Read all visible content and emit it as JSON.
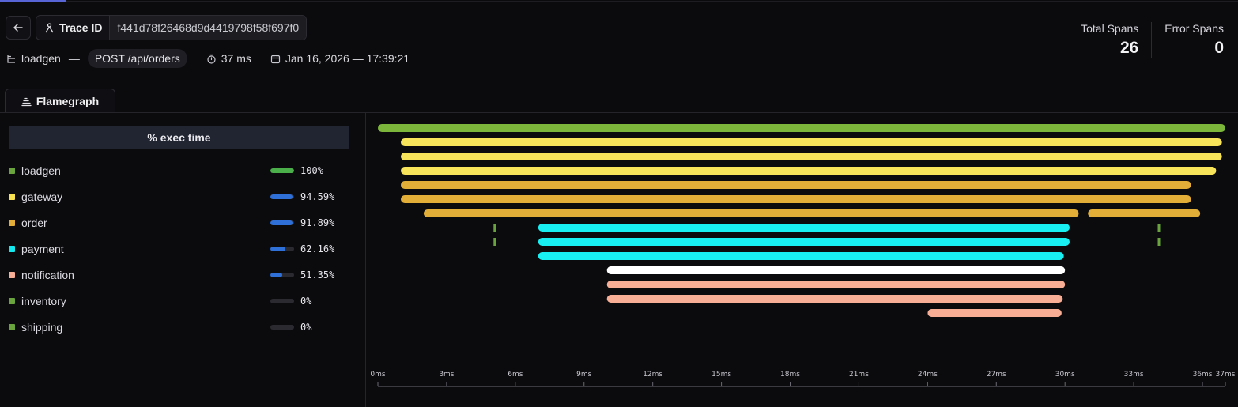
{
  "header": {
    "trace_label": "Trace ID",
    "trace_id": "f441d78f26468d9d4419798f58f697f0",
    "service": "loadgen",
    "separator": "—",
    "endpoint": "POST /api/orders",
    "duration": "37 ms",
    "timestamp": "Jan 16, 2026 — 17:39:21"
  },
  "stats": {
    "total_label": "Total Spans",
    "total_value": "26",
    "error_label": "Error Spans",
    "error_value": "0"
  },
  "tabs": [
    {
      "label": "Flamegraph"
    }
  ],
  "legend": {
    "header": "% exec time",
    "items": [
      {
        "name": "loadgen",
        "color": "#6aa43c",
        "pct": "100%",
        "fraction": 1.0,
        "bar_color": "#4bb04a"
      },
      {
        "name": "gateway",
        "color": "#f7e14f",
        "pct": "94.59%",
        "fraction": 0.9459,
        "bar_color": "#2f6fd8"
      },
      {
        "name": "order",
        "color": "#e3ad3a",
        "pct": "91.89%",
        "fraction": 0.9189,
        "bar_color": "#2f6fd8"
      },
      {
        "name": "payment",
        "color": "#12e8ee",
        "pct": "62.16%",
        "fraction": 0.6216,
        "bar_color": "#2f6fd8"
      },
      {
        "name": "notification",
        "color": "#f7ae94",
        "pct": "51.35%",
        "fraction": 0.5135,
        "bar_color": "#2f6fd8"
      },
      {
        "name": "inventory",
        "color": "#6aa43c",
        "pct": "0%",
        "fraction": 0,
        "bar_color": "#2f6fd8"
      },
      {
        "name": "shipping",
        "color": "#6aa43c",
        "pct": "0%",
        "fraction": 0,
        "bar_color": "#2f6fd8"
      }
    ]
  },
  "flamegraph": {
    "axis_ticks": [
      "0ms",
      "3ms",
      "6ms",
      "9ms",
      "12ms",
      "15ms",
      "18ms",
      "21ms",
      "24ms",
      "27ms",
      "30ms",
      "33ms",
      "36ms",
      "37ms"
    ],
    "axis_max_ms": 37,
    "spans": [
      {
        "service": "loadgen",
        "start": 0.0,
        "end": 37.0,
        "row": 0,
        "color": "#7cb63a"
      },
      {
        "service": "gateway",
        "start": 1.0,
        "end": 36.85,
        "row": 1,
        "color": "#f8e45a"
      },
      {
        "service": "gateway",
        "start": 1.0,
        "end": 36.85,
        "row": 2,
        "color": "#f8e45a"
      },
      {
        "service": "gateway",
        "start": 1.0,
        "end": 36.6,
        "row": 3,
        "color": "#f8e45a"
      },
      {
        "service": "order",
        "start": 1.0,
        "end": 35.5,
        "row": 4,
        "color": "#e2ae38"
      },
      {
        "service": "order",
        "start": 1.0,
        "end": 35.5,
        "row": 5,
        "color": "#e2ae38"
      },
      {
        "service": "order",
        "start": 2.0,
        "end": 30.6,
        "row": 6,
        "color": "#e2ae38"
      },
      {
        "service": "order",
        "start": 31.0,
        "end": 35.9,
        "row": 6,
        "color": "#e2ae38"
      },
      {
        "service": "inventory",
        "start": 5.05,
        "end": 5.12,
        "row": 7,
        "color": "#6aa43c"
      },
      {
        "service": "inventory",
        "start": 5.05,
        "end": 5.12,
        "row": 8,
        "color": "#6aa43c"
      },
      {
        "service": "shipping",
        "start": 34.05,
        "end": 34.12,
        "row": 7,
        "color": "#6aa43c"
      },
      {
        "service": "shipping",
        "start": 34.05,
        "end": 34.12,
        "row": 8,
        "color": "#6aa43c"
      },
      {
        "service": "payment",
        "start": 7.0,
        "end": 30.2,
        "row": 7,
        "color": "#17eff3"
      },
      {
        "service": "payment",
        "start": 7.0,
        "end": 30.2,
        "row": 8,
        "color": "#17eff3"
      },
      {
        "service": "payment",
        "start": 7.0,
        "end": 29.95,
        "row": 9,
        "color": "#17eff3"
      },
      {
        "service": "notification",
        "start": 10.0,
        "end": 30.0,
        "row": 10,
        "color": "#ffffff"
      },
      {
        "service": "notification",
        "start": 10.0,
        "end": 30.0,
        "row": 11,
        "color": "#f7ae94"
      },
      {
        "service": "notification",
        "start": 10.0,
        "end": 29.9,
        "row": 12,
        "color": "#f7ae94"
      },
      {
        "service": "notification",
        "start": 24.0,
        "end": 29.85,
        "row": 13,
        "color": "#f7ae94"
      }
    ]
  }
}
